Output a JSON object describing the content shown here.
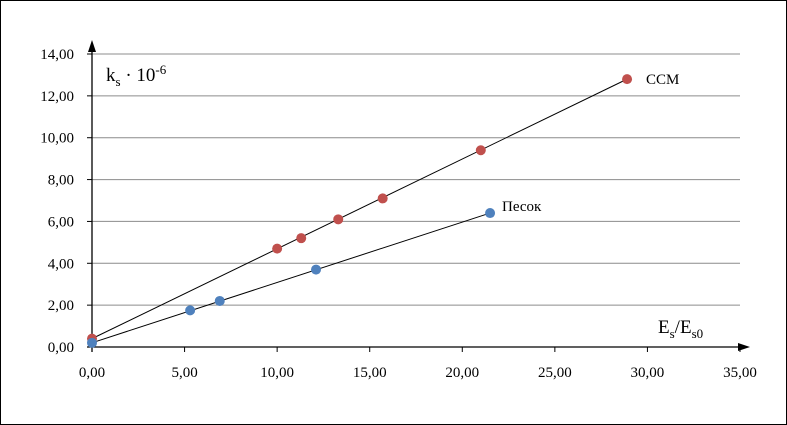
{
  "chart_data": {
    "type": "scatter",
    "x_axis": {
      "min": 0,
      "max": 35,
      "step": 5,
      "tick_labels": [
        "0,00",
        "5,00",
        "10,00",
        "15,00",
        "20,00",
        "25,00",
        "30,00",
        "35,00"
      ],
      "label_main": "E",
      "label_sub1": "s",
      "label_sep": "/E",
      "label_sub2": "s0"
    },
    "y_axis": {
      "min": 0,
      "max": 14,
      "step": 2,
      "tick_labels": [
        "0,00",
        "2,00",
        "4,00",
        "6,00",
        "8,00",
        "10,00",
        "12,00",
        "14,00"
      ],
      "label_main": "k",
      "label_sub": "s",
      "label_mid": " · 10",
      "label_sup": "-6"
    },
    "grid": "horizontal",
    "series": [
      {
        "name": "ССМ",
        "color": "#c0504d",
        "points": [
          {
            "x": 0.0,
            "y": 0.4
          },
          {
            "x": 10.0,
            "y": 4.7
          },
          {
            "x": 11.3,
            "y": 5.2
          },
          {
            "x": 13.3,
            "y": 6.1
          },
          {
            "x": 15.7,
            "y": 7.1
          },
          {
            "x": 21.0,
            "y": 9.4
          },
          {
            "x": 28.9,
            "y": 12.8
          }
        ],
        "trendline": {
          "x0": 0,
          "y0": 0.4,
          "x1": 28.9,
          "y1": 12.8
        }
      },
      {
        "name": "Песок",
        "color": "#4f81bd",
        "points": [
          {
            "x": 0.0,
            "y": 0.2
          },
          {
            "x": 5.3,
            "y": 1.75
          },
          {
            "x": 6.9,
            "y": 2.2
          },
          {
            "x": 12.1,
            "y": 3.7
          },
          {
            "x": 21.5,
            "y": 6.4
          }
        ],
        "trendline": {
          "x0": 0,
          "y0": 0.2,
          "x1": 21.5,
          "y1": 6.4
        }
      }
    ]
  }
}
